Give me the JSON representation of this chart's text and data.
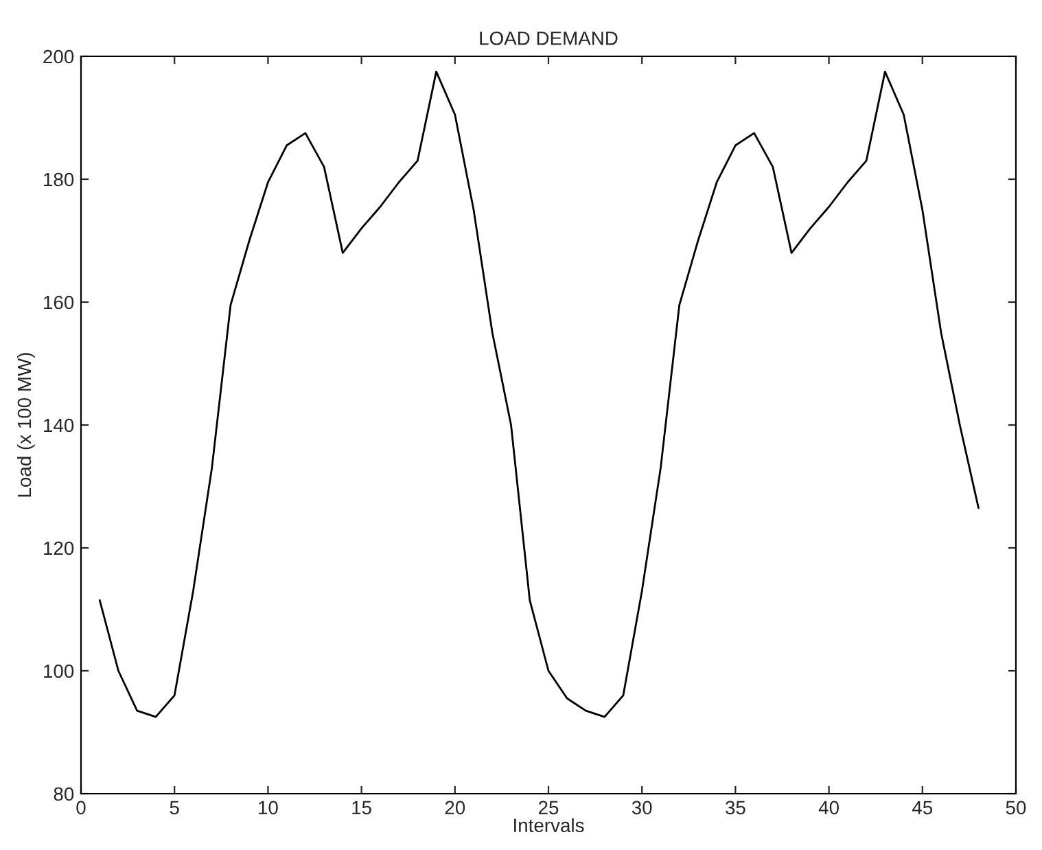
{
  "chart_data": {
    "type": "line",
    "title": "LOAD DEMAND",
    "xlabel": "Intervals",
    "ylabel": "Load (x 100 MW)",
    "x": [
      1,
      2,
      3,
      4,
      5,
      6,
      7,
      8,
      9,
      10,
      11,
      12,
      13,
      14,
      15,
      16,
      17,
      18,
      19,
      20,
      21,
      22,
      23,
      24,
      25,
      26,
      27,
      28,
      29,
      30,
      31,
      32,
      33,
      34,
      35,
      36,
      37,
      38,
      39,
      40,
      41,
      42,
      43,
      44,
      45,
      46,
      47,
      48
    ],
    "series": [
      {
        "color": "#000000",
        "values": [
          111.5,
          100,
          93.5,
          92.5,
          96,
          113,
          133,
          159.5,
          170,
          179.5,
          185.5,
          187.5,
          182,
          168,
          172,
          175.5,
          179.5,
          183,
          197.5,
          190.5,
          175,
          155,
          140,
          111.5,
          100,
          95.5,
          93.5,
          92.5,
          96,
          113,
          133,
          159.5,
          170,
          179.5,
          185.5,
          187.5,
          182,
          168,
          172,
          175.5,
          179.5,
          183,
          197.5,
          190.5,
          175,
          155,
          140,
          126.5
        ]
      }
    ],
    "xlim": [
      0,
      50
    ],
    "ylim": [
      80,
      200
    ],
    "xticks": [
      0,
      5,
      10,
      15,
      20,
      25,
      30,
      35,
      40,
      45,
      50
    ],
    "yticks": [
      80,
      100,
      120,
      140,
      160,
      180,
      200
    ],
    "grid": false,
    "line_style": "solid",
    "marker": "none"
  }
}
